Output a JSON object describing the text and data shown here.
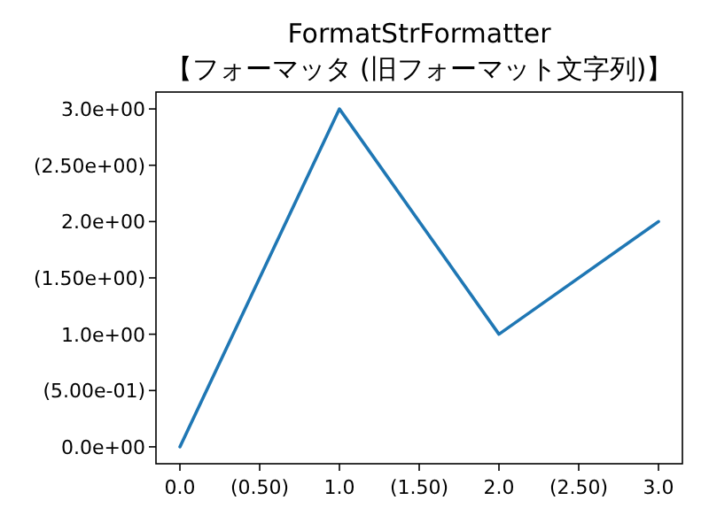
{
  "chart_data": {
    "type": "line",
    "title": "FormatStrFormatter\n【フォーマッタ (旧フォーマット文字列)】",
    "x": [
      0,
      1,
      2,
      3
    ],
    "values": [
      0,
      3,
      1,
      2
    ],
    "color": "#1f77b4",
    "xlim": [
      -0.15,
      3.15
    ],
    "ylim": [
      -0.15,
      3.15
    ],
    "xticks": [
      {
        "value": 0,
        "label": "0.0"
      },
      {
        "value": 0.5,
        "label": "(0.50)"
      },
      {
        "value": 1,
        "label": "1.0"
      },
      {
        "value": 1.5,
        "label": "(1.50)"
      },
      {
        "value": 2,
        "label": "2.0"
      },
      {
        "value": 2.5,
        "label": "(2.50)"
      },
      {
        "value": 3,
        "label": "3.0"
      }
    ],
    "yticks": [
      {
        "value": 0,
        "label": "0.0e+00"
      },
      {
        "value": 0.5,
        "label": "(5.00e-01)"
      },
      {
        "value": 1,
        "label": "1.0e+00"
      },
      {
        "value": 1.5,
        "label": "(1.50e+00)"
      },
      {
        "value": 2,
        "label": "2.0e+00"
      },
      {
        "value": 2.5,
        "label": "(2.50e+00)"
      },
      {
        "value": 3,
        "label": "3.0e+00"
      }
    ]
  }
}
